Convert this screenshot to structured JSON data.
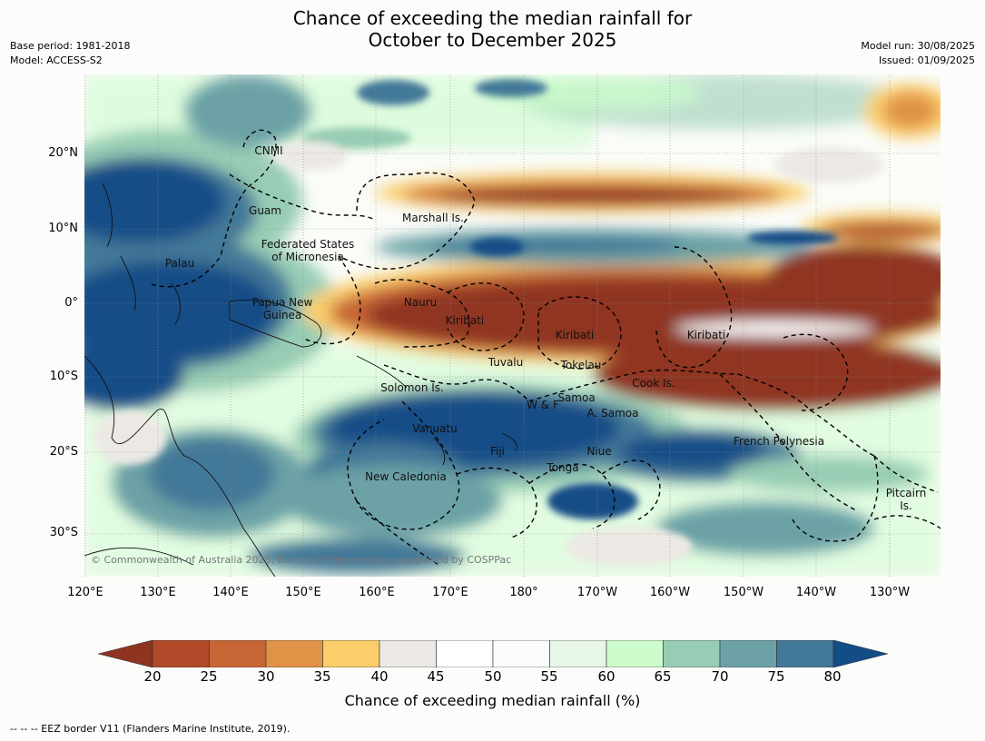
{
  "title": {
    "line1": "Chance of exceeding the median rainfall for",
    "line2": "October to December 2025"
  },
  "meta": {
    "base_period": "Base period: 1981-2018",
    "model": "Model: ACCESS-S2",
    "model_run": "Model run: 30/08/2025",
    "issued": "Issued: 01/09/2025"
  },
  "axes": {
    "lat_labels": [
      "20°N",
      "10°N",
      "0°",
      "10°S",
      "20°S",
      "30°S"
    ],
    "lon_labels": [
      "120°E",
      "130°E",
      "140°E",
      "150°E",
      "160°E",
      "170°E",
      "180°",
      "170°W",
      "160°W",
      "150°W",
      "140°W",
      "130°W"
    ]
  },
  "places": [
    "CNMI",
    "Guam",
    "Marshall Is.",
    "Federated States\nof Micronesia",
    "Palau",
    "Papua New\nGuinea",
    "Nauru",
    "Kiribati",
    "Kiribati",
    "Kiribati",
    "Tuvalu",
    "Tokelau",
    "Cook Is.",
    "Solomon Is.",
    "Samoa",
    "W & F",
    "A. Samoa",
    "Vanuatu",
    "Fiji",
    "Niue",
    "Tonga",
    "French Polynesia",
    "New Caledonia",
    "Pitcairn\nIs."
  ],
  "copyright": "© Commonwealth of Australia 2025, Bureau of Meteorology, supported by COSPPac",
  "colorbar": {
    "ticks": [
      "20",
      "25",
      "30",
      "35",
      "40",
      "45",
      "50",
      "55",
      "60",
      "65",
      "70",
      "75",
      "80"
    ],
    "label": "Chance of exceeding median rainfall (%)",
    "colors": [
      "#8f3420",
      "#b04a28",
      "#c76634",
      "#e09346",
      "#fbcd6b",
      "#ece9e4",
      "#ffffff",
      "#fbfdfb",
      "#e8f6e8",
      "#ccfccc",
      "#98ccb4",
      "#6ca2a6",
      "#427898",
      "#134d87"
    ]
  },
  "footnote": "--  --  -- EEZ border V11 (Flanders Marine Institute, 2019)."
}
